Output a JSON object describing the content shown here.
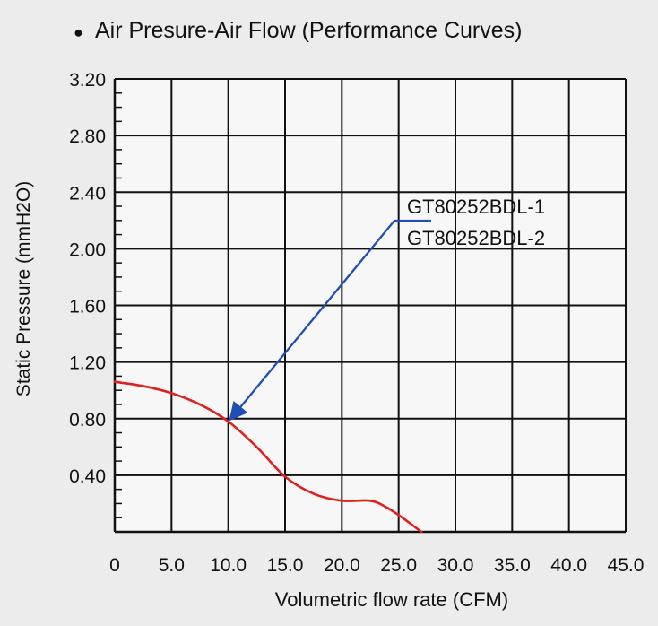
{
  "chart_data": {
    "type": "line",
    "title": "Air Presure-Air Flow (Performance Curves)",
    "title_bullet": "●",
    "xlabel": "Volumetric flow rate (CFM)",
    "ylabel": "Static Pressure (mmH2O)",
    "xlim": [
      0,
      45
    ],
    "ylim": [
      0,
      3.2
    ],
    "grid": true,
    "x_ticks": [
      0,
      5,
      10,
      15,
      20,
      25,
      30,
      35,
      40,
      45
    ],
    "x_tick_labels": [
      "0",
      "5.0",
      "10.0",
      "15.0",
      "20.0",
      "25.0",
      "30.0",
      "35.0",
      "40.0",
      "45.0"
    ],
    "y_ticks": [
      0.4,
      0.8,
      1.2,
      1.6,
      2.0,
      2.4,
      2.8,
      3.2
    ],
    "y_tick_labels": [
      "0.40",
      "0.80",
      "1.20",
      "1.60",
      "2.00",
      "2.40",
      "2.80",
      "3.20"
    ],
    "y_minor_step": 0.1,
    "series": [
      {
        "color": "#e0201c",
        "x": [
          0,
          2.5,
          5,
          7.5,
          10,
          12.5,
          15,
          17.5,
          20,
          22.5,
          24,
          25.5,
          27
        ],
        "y": [
          1.06,
          1.03,
          0.98,
          0.9,
          0.78,
          0.6,
          0.39,
          0.27,
          0.22,
          0.22,
          0.17,
          0.09,
          0.0
        ]
      }
    ],
    "annotation": {
      "labels": [
        "GT80252BDL-1",
        "GT80252BDL-2"
      ],
      "arrow_target": {
        "x": 10,
        "y": 0.78
      },
      "arrow_color": "#1f4fb3"
    }
  }
}
